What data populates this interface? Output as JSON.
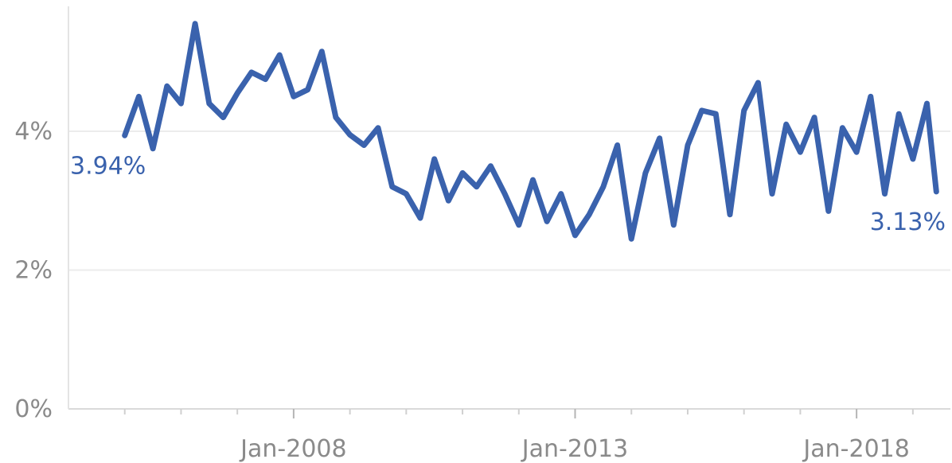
{
  "chart_data": {
    "type": "line",
    "title": "",
    "xlabel": "",
    "ylabel": "",
    "xlim": [
      "2004-01",
      "2019-09"
    ],
    "ylim": [
      0,
      5.8
    ],
    "y_ticks": [
      {
        "value": 0,
        "label": "0%"
      },
      {
        "value": 2,
        "label": "2%"
      },
      {
        "value": 4,
        "label": "4%"
      }
    ],
    "x_ticks": [
      {
        "value": "2008-01",
        "label": "Jan-2008"
      },
      {
        "value": "2013-01",
        "label": "Jan-2013"
      },
      {
        "value": "2018-01",
        "label": "Jan-2018"
      }
    ],
    "gridlines": "horizontal",
    "line_color": "#3a62ad",
    "annotations": [
      {
        "position": "start",
        "label": "3.94%"
      },
      {
        "position": "end",
        "label": "3.13%"
      }
    ],
    "series": [
      {
        "x": [
          "2005-01",
          "2005-04",
          "2005-07",
          "2005-10",
          "2006-01",
          "2006-04",
          "2006-07",
          "2006-10",
          "2007-01",
          "2007-04",
          "2007-07",
          "2007-10",
          "2008-01",
          "2008-04",
          "2008-07",
          "2008-10",
          "2009-01",
          "2009-04",
          "2009-07",
          "2009-10",
          "2010-01",
          "2010-04",
          "2010-07",
          "2010-10",
          "2011-01",
          "2011-04",
          "2011-07",
          "2011-10",
          "2012-01",
          "2012-04",
          "2012-07",
          "2012-10",
          "2013-01",
          "2013-04",
          "2013-07",
          "2013-10",
          "2014-01",
          "2014-04",
          "2014-07",
          "2014-10",
          "2015-01",
          "2015-04",
          "2015-07",
          "2015-10",
          "2016-01",
          "2016-04",
          "2016-07",
          "2016-10",
          "2017-01",
          "2017-04",
          "2017-07",
          "2017-10",
          "2018-01",
          "2018-04",
          "2018-07",
          "2018-10",
          "2019-01",
          "2019-04",
          "2019-06"
        ],
        "values": [
          3.94,
          4.5,
          3.75,
          4.65,
          4.4,
          5.55,
          4.4,
          4.2,
          4.55,
          4.85,
          4.75,
          5.1,
          4.5,
          4.6,
          5.15,
          4.2,
          3.95,
          3.8,
          4.05,
          3.2,
          3.1,
          2.75,
          3.6,
          3.0,
          3.4,
          3.2,
          3.5,
          3.1,
          2.65,
          3.3,
          2.7,
          3.1,
          2.5,
          2.8,
          3.2,
          3.8,
          2.45,
          3.4,
          3.9,
          2.65,
          3.8,
          4.3,
          4.25,
          2.8,
          4.3,
          4.7,
          3.1,
          4.1,
          3.7,
          4.2,
          2.85,
          4.05,
          3.7,
          4.5,
          3.1,
          4.25,
          3.6,
          4.4,
          3.13
        ]
      }
    ]
  }
}
